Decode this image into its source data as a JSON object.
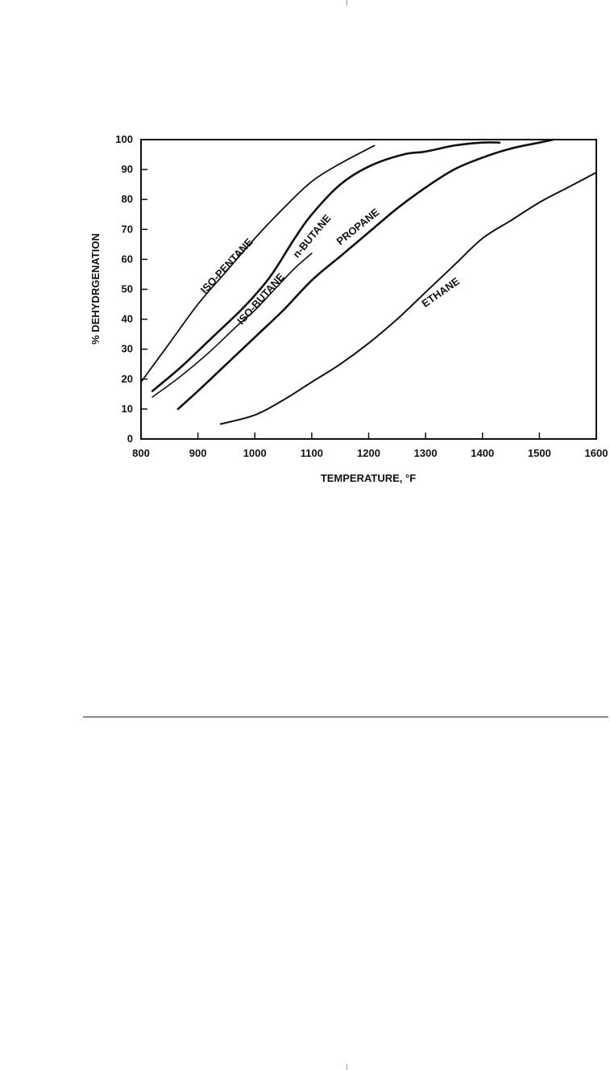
{
  "chart_data": {
    "type": "line",
    "title": "",
    "xlabel": "TEMPERATURE, °F",
    "ylabel": "% DEHYDRGENATION",
    "xlim": [
      800,
      1600
    ],
    "ylim": [
      0,
      100
    ],
    "x_ticks": [
      800,
      900,
      1000,
      1100,
      1200,
      1300,
      1400,
      1500,
      1600
    ],
    "y_ticks": [
      0,
      10,
      20,
      30,
      40,
      50,
      60,
      70,
      80,
      90,
      100
    ],
    "grid": false,
    "legend": "none",
    "series": [
      {
        "name": "ISO-PENTANE",
        "x": [
          800,
          850,
          900,
          950,
          1000,
          1050,
          1100,
          1150,
          1200,
          1210
        ],
        "y": [
          19,
          32,
          45,
          56,
          67,
          77,
          86,
          92,
          97,
          98
        ]
      },
      {
        "name": "ISO-BUTANE",
        "x": [
          820,
          870,
          920,
          970,
          1000,
          1030,
          1070,
          1100,
          1150,
          1200,
          1260,
          1300,
          1350,
          1400,
          1430
        ],
        "y": [
          16,
          24,
          33,
          42,
          48,
          55,
          67,
          75,
          85,
          91,
          95,
          96,
          98,
          99,
          99
        ]
      },
      {
        "name": "n-BUTANE",
        "x": [
          820,
          870,
          920,
          970,
          1000,
          1030,
          1070,
          1100
        ],
        "y": [
          14,
          21,
          29,
          38,
          43,
          49,
          57,
          62
        ]
      },
      {
        "name": "PROPANE",
        "x": [
          865,
          900,
          950,
          1000,
          1050,
          1100,
          1150,
          1200,
          1250,
          1300,
          1350,
          1400,
          1450,
          1500,
          1525
        ],
        "y": [
          10,
          16,
          25,
          34,
          43,
          53,
          61,
          69,
          77,
          84,
          90,
          94,
          97,
          99,
          100
        ]
      },
      {
        "name": "ETHANE",
        "x": [
          940,
          1000,
          1050,
          1100,
          1150,
          1200,
          1250,
          1300,
          1350,
          1400,
          1450,
          1500,
          1550,
          1600
        ],
        "y": [
          5,
          8,
          13,
          19,
          25,
          32,
          40,
          49,
          58,
          67,
          73,
          79,
          84,
          89
        ]
      }
    ]
  }
}
